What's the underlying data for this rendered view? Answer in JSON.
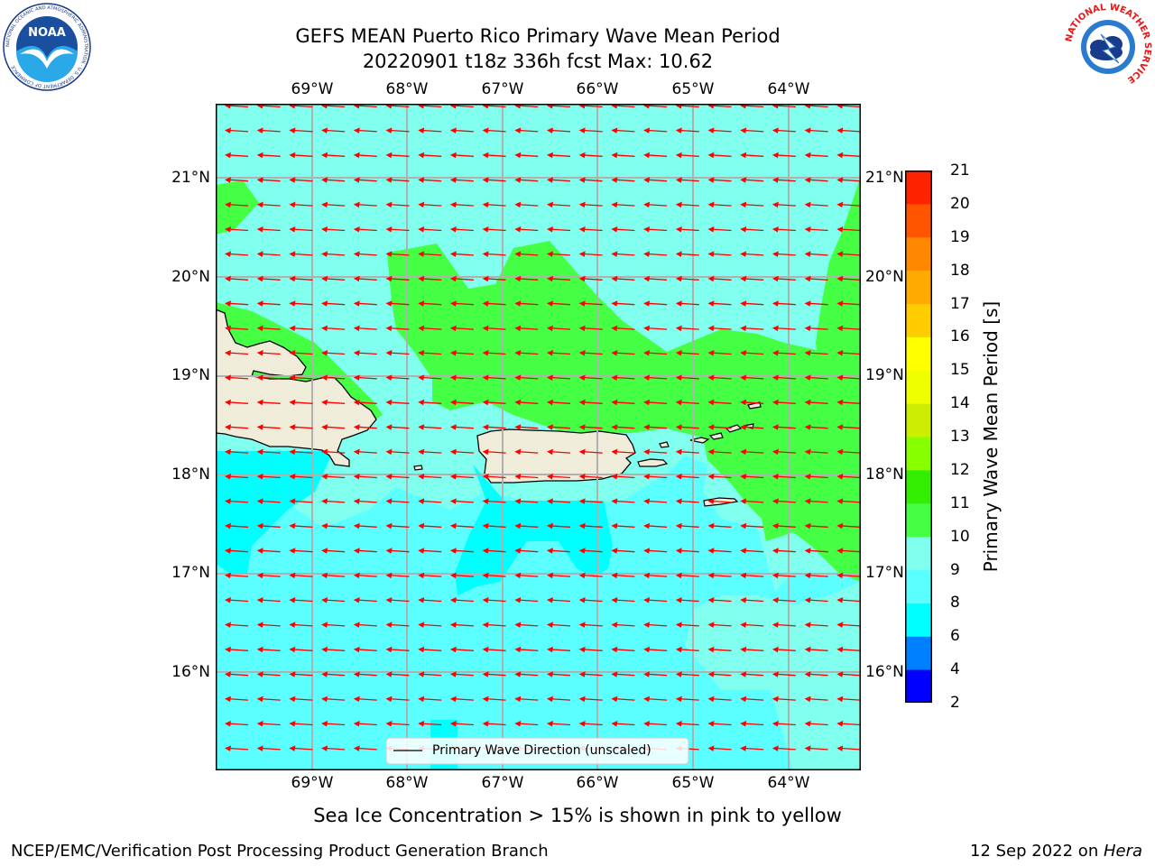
{
  "title": {
    "line1": "GEFS MEAN Puerto Rico Primary Wave Mean Period",
    "line2": "20220901 t18z 336h fcst   Max: 10.62"
  },
  "map": {
    "lon_ticks": [
      "69°W",
      "68°W",
      "67°W",
      "66°W",
      "65°W",
      "64°W"
    ],
    "lat_ticks": [
      "21°N",
      "20°N",
      "19°N",
      "18°N",
      "17°N",
      "16°N"
    ],
    "land_color": "#efedda",
    "arrow_color": "#ff0000",
    "wave_direction": "west",
    "legend_label": "Primary Wave Direction (unscaled)"
  },
  "colorbar": {
    "label": "Primary Wave Mean Period [s]",
    "ticks": [
      "2",
      "4",
      "6",
      "8",
      "9",
      "10",
      "11",
      "12",
      "13",
      "14",
      "15",
      "16",
      "17",
      "18",
      "19",
      "20",
      "21"
    ],
    "colors": [
      "#0000ff",
      "#0080ff",
      "#00ffff",
      "#5cffff",
      "#80ffee",
      "#44ff44",
      "#33ee00",
      "#88ff00",
      "#ccee00",
      "#eeff00",
      "#ffff00",
      "#ffcc00",
      "#ffaa00",
      "#ff8800",
      "#ff5500",
      "#ff2200"
    ]
  },
  "field_colors": {
    "period_6_8": "#00ffff",
    "period_8_9": "#5cffff",
    "period_9_10": "#80ffee",
    "period_10_11": "#44ff44"
  },
  "notes": {
    "sea_ice": "Sea Ice Concentration > 15% is shown in pink to yellow"
  },
  "footer": {
    "left": "NCEP/EMC/Verification Post Processing Product Generation Branch",
    "date": "12 Sep 2022 on ",
    "machine": "Hera"
  },
  "logos": {
    "noaa_text": "NOAA",
    "noaa_ring": "NATIONAL OCEANIC AND ATMOSPHERIC ADMINISTRATION · U.S. DEPARTMENT OF COMMERCE",
    "nws_ring": "NATIONAL WEATHER SERVICE"
  }
}
